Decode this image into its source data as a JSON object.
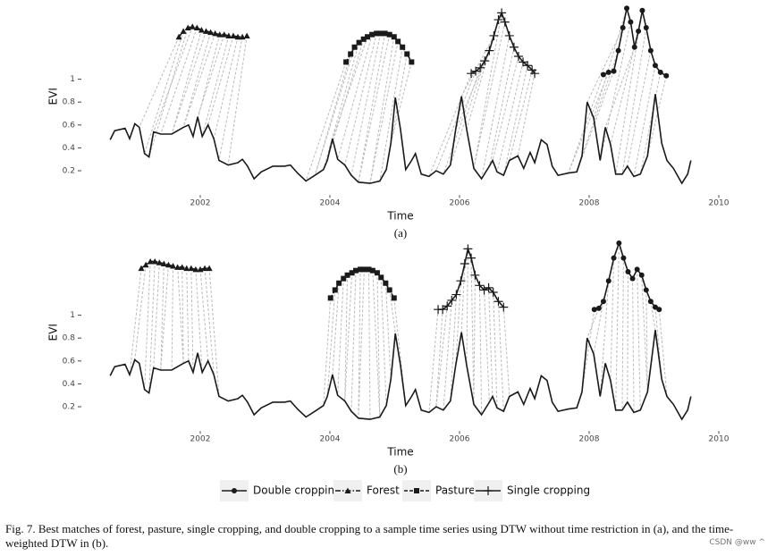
{
  "chart_data": [
    {
      "type": "line",
      "panel_label": "(a)",
      "xlabel": "Time",
      "ylabel": "EVI",
      "xlim": [
        2000.5,
        2010.1
      ],
      "ylim": [
        0.05,
        1.65
      ],
      "xticks": [
        2002,
        2004,
        2006,
        2008,
        2010
      ],
      "yticks": [
        0.2,
        0.4,
        0.6,
        0.8,
        1
      ],
      "color": "#1a1a1a",
      "x": [
        2000.61,
        2000.68,
        2000.84,
        2000.91,
        2000.99,
        2001.06,
        2001.14,
        2001.21,
        2001.28,
        2001.39,
        2001.56,
        2001.74,
        2001.82,
        2001.89,
        2001.96,
        2002.03,
        2002.12,
        2002.21,
        2002.29,
        2002.43,
        2002.58,
        2002.65,
        2002.73,
        2002.83,
        2002.94,
        2003.12,
        2003.3,
        2003.39,
        2003.5,
        2003.63,
        2003.77,
        2003.9,
        2003.96,
        2004.04,
        2004.12,
        2004.23,
        2004.33,
        2004.44,
        2004.62,
        2004.77,
        2004.87,
        2004.94,
        2005.01,
        2005.09,
        2005.17,
        2005.26,
        2005.32,
        2005.41,
        2005.53,
        2005.64,
        2005.75,
        2005.86,
        2005.94,
        2006.03,
        2006.11,
        2006.22,
        2006.34,
        2006.46,
        2006.51,
        2006.58,
        2006.68,
        2006.77,
        2006.9,
        2006.99,
        2007.09,
        2007.16,
        2007.26,
        2007.35,
        2007.43,
        2007.52,
        2007.68,
        2007.81,
        2007.89,
        2007.97,
        2008.07,
        2008.17,
        2008.25,
        2008.33,
        2008.41,
        2008.51,
        2008.59,
        2008.69,
        2008.79,
        2008.9,
        2009.02,
        2009.12,
        2009.2,
        2009.3,
        2009.43,
        2009.52,
        2009.57
      ],
      "values": [
        0.47,
        0.55,
        0.57,
        0.48,
        0.61,
        0.58,
        0.35,
        0.32,
        0.54,
        0.52,
        0.52,
        0.58,
        0.6,
        0.5,
        0.67,
        0.5,
        0.6,
        0.48,
        0.29,
        0.25,
        0.27,
        0.3,
        0.24,
        0.13,
        0.19,
        0.24,
        0.24,
        0.25,
        0.18,
        0.11,
        0.16,
        0.21,
        0.29,
        0.48,
        0.3,
        0.25,
        0.16,
        0.1,
        0.09,
        0.11,
        0.21,
        0.44,
        0.84,
        0.56,
        0.21,
        0.29,
        0.35,
        0.17,
        0.15,
        0.2,
        0.17,
        0.25,
        0.56,
        0.85,
        0.56,
        0.22,
        0.13,
        0.24,
        0.29,
        0.19,
        0.16,
        0.29,
        0.33,
        0.22,
        0.36,
        0.27,
        0.47,
        0.43,
        0.24,
        0.16,
        0.18,
        0.19,
        0.33,
        0.8,
        0.66,
        0.29,
        0.58,
        0.43,
        0.17,
        0.17,
        0.24,
        0.15,
        0.17,
        0.33,
        0.87,
        0.44,
        0.29,
        0.22,
        0.09,
        0.17,
        0.29
      ],
      "series": [
        {
          "name": "Double cropping",
          "color": "#1a1a1a",
          "marker": "circle",
          "dash": "solid",
          "x": [
            2008.22,
            2008.3,
            2008.38,
            2008.45,
            2008.52,
            2008.58,
            2008.64,
            2008.7,
            2008.76,
            2008.82,
            2008.88,
            2008.95,
            2009.02,
            2009.1,
            2009.19
          ],
          "values": [
            1.04,
            1.06,
            1.07,
            1.25,
            1.45,
            1.62,
            1.5,
            1.28,
            1.42,
            1.6,
            1.45,
            1.25,
            1.12,
            1.06,
            1.03
          ]
        },
        {
          "name": "Forest",
          "color": "#1a1a1a",
          "marker": "triangle",
          "dash": "dotdash",
          "x": [
            2001.67,
            2001.74,
            2001.81,
            2001.88,
            2001.95,
            2002.02,
            2002.09,
            2002.16,
            2002.23,
            2002.3,
            2002.37,
            2002.44,
            2002.51,
            2002.58,
            2002.65,
            2002.72
          ],
          "values": [
            1.37,
            1.42,
            1.45,
            1.46,
            1.45,
            1.43,
            1.42,
            1.41,
            1.4,
            1.39,
            1.39,
            1.38,
            1.38,
            1.37,
            1.37,
            1.38
          ]
        },
        {
          "name": "Pasture",
          "color": "#1a1a1a",
          "marker": "square",
          "dash": "dashed",
          "x": [
            2004.25,
            2004.32,
            2004.38,
            2004.45,
            2004.52,
            2004.58,
            2004.65,
            2004.72,
            2004.78,
            2004.85,
            2004.92,
            2004.99,
            2005.05,
            2005.12,
            2005.19,
            2005.26
          ],
          "values": [
            1.15,
            1.22,
            1.28,
            1.32,
            1.35,
            1.37,
            1.39,
            1.4,
            1.4,
            1.4,
            1.39,
            1.37,
            1.33,
            1.28,
            1.22,
            1.15
          ]
        },
        {
          "name": "Single cropping",
          "color": "#1a1a1a",
          "marker": "plus",
          "dash": "solid",
          "x": [
            2006.18,
            2006.25,
            2006.32,
            2006.39,
            2006.46,
            2006.53,
            2006.6,
            2006.65,
            2006.7,
            2006.77,
            2006.84,
            2006.91,
            2006.98,
            2007.05,
            2007.12,
            2007.16
          ],
          "values": [
            1.05,
            1.07,
            1.1,
            1.16,
            1.25,
            1.38,
            1.52,
            1.58,
            1.5,
            1.38,
            1.28,
            1.2,
            1.15,
            1.12,
            1.08,
            1.05
          ]
        }
      ]
    },
    {
      "type": "line",
      "panel_label": "(b)",
      "xlabel": "Time",
      "ylabel": "EVI",
      "xlim": [
        2000.5,
        2010.1
      ],
      "ylim": [
        0.05,
        1.65
      ],
      "xticks": [
        2002,
        2004,
        2006,
        2008,
        2010
      ],
      "yticks": [
        0.2,
        0.4,
        0.6,
        0.8,
        1
      ],
      "color": "#1a1a1a",
      "legend": "bottom",
      "x": [
        2000.61,
        2000.68,
        2000.84,
        2000.91,
        2000.99,
        2001.06,
        2001.14,
        2001.21,
        2001.28,
        2001.39,
        2001.56,
        2001.74,
        2001.82,
        2001.89,
        2001.96,
        2002.03,
        2002.12,
        2002.21,
        2002.29,
        2002.43,
        2002.58,
        2002.65,
        2002.73,
        2002.83,
        2002.94,
        2003.12,
        2003.3,
        2003.39,
        2003.5,
        2003.63,
        2003.77,
        2003.9,
        2003.96,
        2004.04,
        2004.12,
        2004.23,
        2004.33,
        2004.44,
        2004.62,
        2004.77,
        2004.87,
        2004.94,
        2005.01,
        2005.09,
        2005.17,
        2005.26,
        2005.32,
        2005.41,
        2005.53,
        2005.64,
        2005.75,
        2005.86,
        2005.94,
        2006.03,
        2006.11,
        2006.22,
        2006.34,
        2006.46,
        2006.51,
        2006.58,
        2006.68,
        2006.77,
        2006.9,
        2006.99,
        2007.09,
        2007.16,
        2007.26,
        2007.35,
        2007.43,
        2007.52,
        2007.68,
        2007.81,
        2007.89,
        2007.97,
        2008.07,
        2008.17,
        2008.25,
        2008.33,
        2008.41,
        2008.51,
        2008.59,
        2008.69,
        2008.79,
        2008.9,
        2009.02,
        2009.12,
        2009.2,
        2009.3,
        2009.43,
        2009.52,
        2009.57
      ],
      "values": [
        0.47,
        0.55,
        0.57,
        0.48,
        0.61,
        0.58,
        0.35,
        0.32,
        0.54,
        0.52,
        0.52,
        0.58,
        0.6,
        0.5,
        0.67,
        0.5,
        0.6,
        0.48,
        0.29,
        0.25,
        0.27,
        0.3,
        0.24,
        0.13,
        0.19,
        0.24,
        0.24,
        0.25,
        0.18,
        0.11,
        0.16,
        0.21,
        0.29,
        0.48,
        0.3,
        0.25,
        0.16,
        0.1,
        0.09,
        0.11,
        0.21,
        0.44,
        0.84,
        0.56,
        0.21,
        0.29,
        0.35,
        0.17,
        0.15,
        0.2,
        0.17,
        0.25,
        0.56,
        0.85,
        0.56,
        0.22,
        0.13,
        0.24,
        0.29,
        0.19,
        0.16,
        0.29,
        0.33,
        0.22,
        0.36,
        0.27,
        0.47,
        0.43,
        0.24,
        0.16,
        0.18,
        0.19,
        0.33,
        0.8,
        0.66,
        0.29,
        0.58,
        0.43,
        0.17,
        0.17,
        0.24,
        0.15,
        0.17,
        0.33,
        0.87,
        0.44,
        0.29,
        0.22,
        0.09,
        0.17,
        0.29
      ],
      "series": [
        {
          "name": "Double cropping",
          "color": "#1a1a1a",
          "marker": "circle",
          "dash": "solid",
          "x": [
            2008.08,
            2008.15,
            2008.22,
            2008.3,
            2008.38,
            2008.46,
            2008.53,
            2008.6,
            2008.67,
            2008.74,
            2008.81,
            2008.88,
            2008.95,
            2009.02,
            2009.08
          ],
          "values": [
            1.05,
            1.06,
            1.12,
            1.3,
            1.5,
            1.63,
            1.5,
            1.38,
            1.32,
            1.4,
            1.35,
            1.22,
            1.12,
            1.07,
            1.05
          ]
        },
        {
          "name": "Forest",
          "color": "#1a1a1a",
          "marker": "triangle",
          "dash": "dotdash",
          "x": [
            2001.09,
            2001.16,
            2001.23,
            2001.3,
            2001.37,
            2001.44,
            2001.51,
            2001.58,
            2001.65,
            2001.72,
            2001.79,
            2001.86,
            2001.93,
            2002.0,
            2002.07,
            2002.14
          ],
          "values": [
            1.41,
            1.44,
            1.47,
            1.47,
            1.46,
            1.45,
            1.44,
            1.43,
            1.42,
            1.42,
            1.41,
            1.41,
            1.4,
            1.4,
            1.41,
            1.41
          ]
        },
        {
          "name": "Pasture",
          "color": "#1a1a1a",
          "marker": "square",
          "dash": "dashed",
          "x": [
            2004.01,
            2004.08,
            2004.14,
            2004.21,
            2004.27,
            2004.34,
            2004.4,
            2004.47,
            2004.53,
            2004.6,
            2004.66,
            2004.73,
            2004.79,
            2004.86,
            2004.92,
            2004.99
          ],
          "values": [
            1.15,
            1.22,
            1.28,
            1.32,
            1.35,
            1.37,
            1.39,
            1.4,
            1.4,
            1.4,
            1.39,
            1.37,
            1.33,
            1.28,
            1.22,
            1.15
          ]
        },
        {
          "name": "Single cropping",
          "color": "#1a1a1a",
          "marker": "plus",
          "dash": "solid",
          "x": [
            2005.67,
            2005.74,
            2005.81,
            2005.88,
            2005.95,
            2006.02,
            2006.08,
            2006.13,
            2006.18,
            2006.24,
            2006.31,
            2006.38,
            2006.45,
            2006.52,
            2006.6,
            2006.68
          ],
          "values": [
            1.05,
            1.05,
            1.08,
            1.13,
            1.18,
            1.3,
            1.45,
            1.58,
            1.5,
            1.35,
            1.26,
            1.22,
            1.24,
            1.2,
            1.12,
            1.07
          ]
        }
      ]
    }
  ],
  "caption": "Fig. 7. Best matches of forest, pasture, single cropping, and double cropping to a sample time series using DTW without time restriction in (a), and the time-weighted DTW in (b).",
  "watermark": "CSDN @ww ^"
}
